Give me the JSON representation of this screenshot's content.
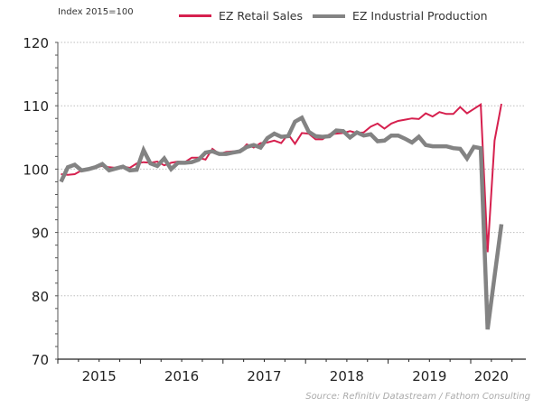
{
  "chart_data": {
    "type": "line",
    "title": "",
    "unit_label": "Index 2015=100",
    "xlabel": "",
    "ylabel": "",
    "ylim": [
      70,
      120
    ],
    "yticks": [
      70,
      80,
      90,
      100,
      110,
      120
    ],
    "x_start": "2015-01",
    "x_end": "2020-06",
    "xtick_labels": [
      "2015",
      "2016",
      "2017",
      "2018",
      "2019",
      "2020"
    ],
    "grid": "horizontal-dotted",
    "legend_placement": "top",
    "series": [
      {
        "name": "EZ Retail Sales",
        "color": "#d6204e",
        "values": [
          99.2,
          99.1,
          99.2,
          99.8,
          100.1,
          100.3,
          100.5,
          100.3,
          100.2,
          100.4,
          100.2,
          100.9,
          101.1,
          101.0,
          101.2,
          100.6,
          101.0,
          101.2,
          101.1,
          101.8,
          101.8,
          101.5,
          103.2,
          102.4,
          102.7,
          102.8,
          102.7,
          103.9,
          103.4,
          104.1,
          104.2,
          104.5,
          104.1,
          105.5,
          104.0,
          105.7,
          105.6,
          104.7,
          104.7,
          105.5,
          105.6,
          105.7,
          106.0,
          105.7,
          105.8,
          106.7,
          107.2,
          106.4,
          107.2,
          107.6,
          107.8,
          108.0,
          107.9,
          108.8,
          108.3,
          109.0,
          108.7,
          108.7,
          109.8,
          108.8,
          109.5,
          110.2,
          86.9,
          104.5,
          110.3
        ],
        "width": "thin"
      },
      {
        "name": "EZ Industrial Production",
        "color": "#838383",
        "values": [
          98.0,
          100.3,
          100.7,
          99.8,
          100.0,
          100.3,
          100.8,
          99.8,
          100.1,
          100.4,
          99.8,
          99.9,
          103.0,
          100.9,
          100.5,
          101.7,
          100.0,
          101.0,
          101.0,
          101.1,
          101.5,
          102.6,
          102.8,
          102.4,
          102.4,
          102.6,
          102.8,
          103.5,
          103.8,
          103.4,
          104.9,
          105.6,
          105.1,
          105.2,
          107.5,
          108.1,
          105.9,
          105.2,
          105.1,
          105.2,
          106.1,
          106.0,
          105.0,
          105.8,
          105.3,
          105.5,
          104.4,
          104.5,
          105.3,
          105.3,
          104.8,
          104.2,
          105.1,
          103.8,
          103.6,
          103.6,
          103.6,
          103.3,
          103.2,
          101.7,
          103.5,
          103.3,
          74.7,
          83.1,
          91.3
        ],
        "width": "thick"
      }
    ]
  },
  "legend": {
    "items": [
      {
        "label": "EZ Retail Sales",
        "color": "#d6204e"
      },
      {
        "label": "EZ Industrial Production",
        "color": "#838383"
      }
    ]
  },
  "source": "Source: Refinitiv Datastream / Fathom Consulting"
}
